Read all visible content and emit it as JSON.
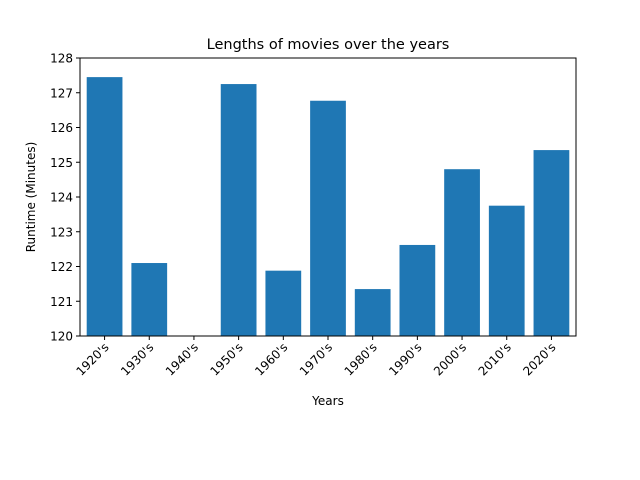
{
  "chart_data": {
    "type": "bar",
    "title": "Lengths of movies over the years",
    "xlabel": "Years",
    "ylabel": "Runtime (Minutes)",
    "categories": [
      "1920's",
      "1930's",
      "1940's",
      "1950's",
      "1960's",
      "1970's",
      "1980's",
      "1990's",
      "2000's",
      "2010's",
      "2020's"
    ],
    "values": [
      127.45,
      122.1,
      120.0,
      127.25,
      121.88,
      126.77,
      121.35,
      122.62,
      124.8,
      123.75,
      125.35
    ],
    "ylim": [
      120,
      128
    ],
    "yticks": [
      120,
      121,
      122,
      123,
      124,
      125,
      126,
      127,
      128
    ],
    "bar_color": "#1f77b4",
    "grid": false,
    "legend": "none"
  }
}
